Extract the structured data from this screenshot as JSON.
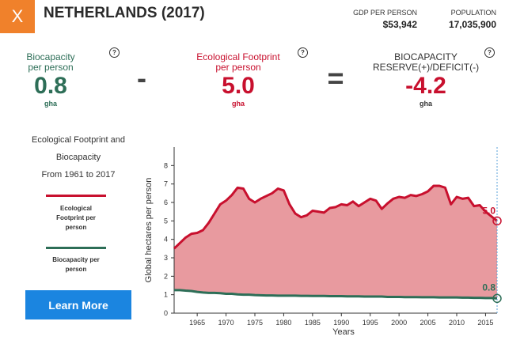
{
  "header": {
    "close_label": "X",
    "title": "NETHERLANDS (2017)",
    "gdp_label": "GDP PER PERSON",
    "gdp_value": "$53,942",
    "population_label": "POPULATION",
    "population_value": "17,035,900"
  },
  "metrics": {
    "biocapacity": {
      "label_line1": "Biocapacity",
      "label_line2": "per person",
      "value": "0.8",
      "unit": "gha",
      "help": "?"
    },
    "minus": "-",
    "footprint": {
      "label_line1": "Ecological Footprint",
      "label_line2": "per person",
      "value": "5.0",
      "unit": "gha",
      "help": "?"
    },
    "equals": "=",
    "reserve": {
      "label_line1": "BIOCAPACITY",
      "label_line2": "RESERVE(+)/DEFICIT(-)",
      "value": "-4.2",
      "unit": "gha",
      "help": "?"
    }
  },
  "sidebar": {
    "description_line1": "Ecological Footprint and",
    "description_line2": "Biocapacity",
    "description_line3": "From 1961 to 2017",
    "legend_footprint_line1": "Ecological",
    "legend_footprint_line2": "Footprint per",
    "legend_footprint_line3": "person",
    "legend_biocapacity_line1": "Biocapacity per",
    "legend_biocapacity_line2": "person",
    "learn_more": "Learn More"
  },
  "colors": {
    "accent": "#f0812b",
    "footprint": "#c8102e",
    "footprint_fill": "#e89a9f",
    "biocapacity": "#2d6e57",
    "button": "#1b85e0"
  },
  "chart_data": {
    "type": "area",
    "xlabel": "Years",
    "ylabel": "Global hectares per person",
    "xlim": [
      1961,
      2017
    ],
    "ylim": [
      0,
      9
    ],
    "x_ticks": [
      1965,
      1970,
      1975,
      1980,
      1985,
      1990,
      1995,
      2000,
      2005,
      2010,
      2015
    ],
    "y_ticks": [
      0,
      1,
      2,
      3,
      4,
      5,
      6,
      7,
      8
    ],
    "x": [
      1961,
      1962,
      1963,
      1964,
      1965,
      1966,
      1967,
      1968,
      1969,
      1970,
      1971,
      1972,
      1973,
      1974,
      1975,
      1976,
      1977,
      1978,
      1979,
      1980,
      1981,
      1982,
      1983,
      1984,
      1985,
      1986,
      1987,
      1988,
      1989,
      1990,
      1991,
      1992,
      1993,
      1994,
      1995,
      1996,
      1997,
      1998,
      1999,
      2000,
      2001,
      2002,
      2003,
      2004,
      2005,
      2006,
      2007,
      2008,
      2009,
      2010,
      2011,
      2012,
      2013,
      2014,
      2015,
      2016,
      2017
    ],
    "series": [
      {
        "name": "Ecological Footprint per person",
        "values": [
          3.5,
          3.8,
          4.1,
          4.3,
          4.35,
          4.5,
          4.9,
          5.4,
          5.9,
          6.1,
          6.4,
          6.8,
          6.75,
          6.2,
          6.0,
          6.2,
          6.35,
          6.5,
          6.75,
          6.65,
          5.9,
          5.4,
          5.2,
          5.3,
          5.55,
          5.5,
          5.45,
          5.7,
          5.75,
          5.9,
          5.85,
          6.05,
          5.8,
          6.0,
          6.2,
          6.1,
          5.65,
          5.95,
          6.2,
          6.3,
          6.25,
          6.4,
          6.35,
          6.45,
          6.6,
          6.9,
          6.9,
          6.8,
          5.9,
          6.3,
          6.2,
          6.25,
          5.8,
          5.85,
          5.5,
          5.25,
          5.0
        ]
      },
      {
        "name": "Biocapacity per person",
        "values": [
          1.25,
          1.25,
          1.22,
          1.2,
          1.15,
          1.12,
          1.1,
          1.1,
          1.08,
          1.05,
          1.05,
          1.02,
          1.0,
          1.0,
          0.98,
          0.97,
          0.96,
          0.96,
          0.95,
          0.95,
          0.95,
          0.95,
          0.94,
          0.94,
          0.93,
          0.93,
          0.93,
          0.92,
          0.92,
          0.92,
          0.91,
          0.91,
          0.91,
          0.9,
          0.9,
          0.9,
          0.9,
          0.88,
          0.88,
          0.88,
          0.87,
          0.87,
          0.87,
          0.86,
          0.86,
          0.86,
          0.85,
          0.85,
          0.85,
          0.85,
          0.84,
          0.84,
          0.83,
          0.83,
          0.82,
          0.82,
          0.8
        ]
      }
    ],
    "end_labels": [
      "5.0",
      "0.8"
    ]
  }
}
